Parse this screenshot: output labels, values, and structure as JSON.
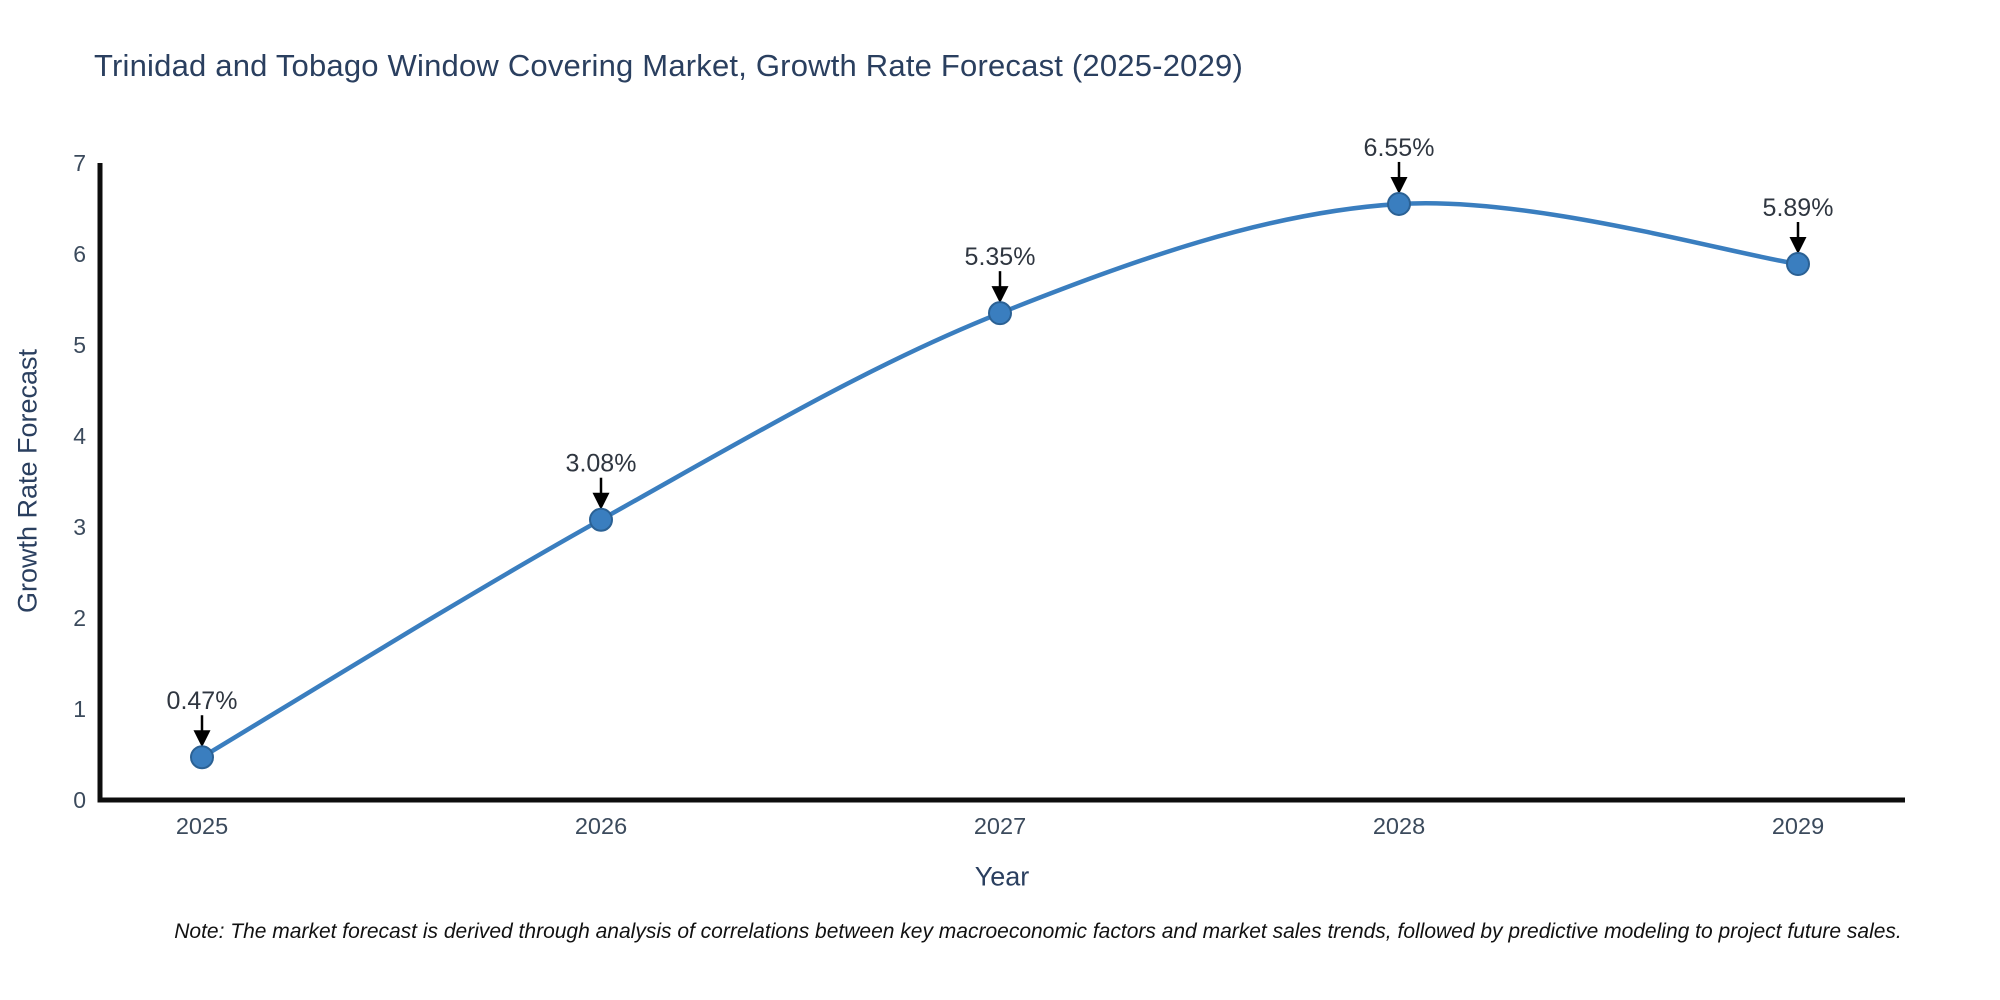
{
  "chart_data": {
    "type": "line",
    "title": "Trinidad and Tobago Window Covering Market, Growth Rate Forecast (2025-2029)",
    "xlabel": "Year",
    "ylabel": "Growth Rate Forecast",
    "categories": [
      2025,
      2026,
      2027,
      2028,
      2029
    ],
    "values": [
      0.47,
      3.08,
      5.35,
      6.55,
      5.89
    ],
    "point_labels": [
      "0.47%",
      "3.08%",
      "5.35%",
      "6.55%",
      "5.89%"
    ],
    "ylim": [
      0,
      7
    ],
    "yticks": [
      0,
      1,
      2,
      3,
      4,
      5,
      6,
      7
    ],
    "grid": false,
    "legend_position": "none",
    "line_shape": "spline",
    "colors": {
      "line": "#3a7ebf",
      "marker_fill": "#3a7ebf",
      "marker_edge": "#2b6194",
      "annotation_arrow": "#000000",
      "annotation_text": "#2f3640",
      "axis_line": "#0d0d0d",
      "tick_text": "#3b4a5c",
      "title_text": "#2a3f5f"
    }
  },
  "note": "Note: The market forecast is derived through analysis of correlations between key macroeconomic factors and market sales trends, followed by predictive modeling to project future sales."
}
